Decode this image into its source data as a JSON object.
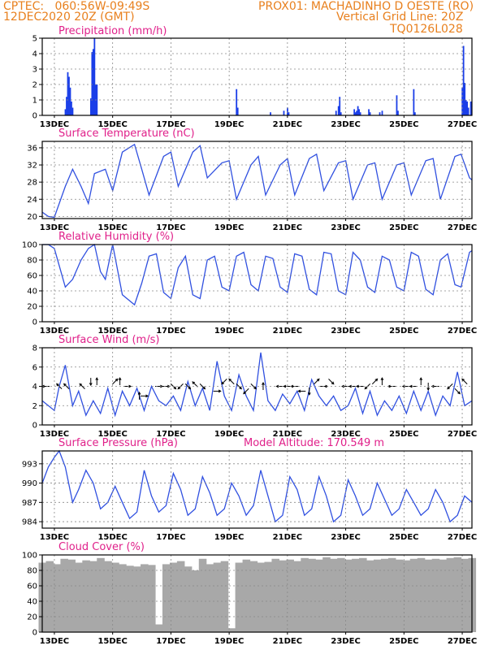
{
  "header": {
    "line1": "CPTEC:   060:56W-09:49S",
    "line2": "12DEC2020 20Z (GMT)",
    "location": "PROX01: MACHADINHO D OESTE (RO)",
    "grid_note": "Vertical Grid Line: 20Z",
    "code": "TQ0126L028"
  },
  "colors": {
    "header": "#e8801e",
    "title": "#e0208a",
    "line": "#3050e0",
    "bar": "#1a3ee8",
    "cloud": "#a8a8a8"
  },
  "x_ticks": [
    "13DEC",
    "15DEC",
    "17DEC",
    "19DEC",
    "21DEC",
    "23DEC",
    "25DEC",
    "27DEC"
  ],
  "chart_data": [
    {
      "type": "bar",
      "title": "Precipitation  (mm/h)",
      "ylim": [
        0,
        5
      ],
      "yticks": [
        0,
        1,
        2,
        3,
        4,
        5
      ],
      "x_unit": "hours since 12DEC2020 20Z",
      "x_range": [
        0,
        354
      ],
      "bars": [
        [
          19,
          0.4
        ],
        [
          20,
          1.2
        ],
        [
          21,
          2.8
        ],
        [
          22,
          2.5
        ],
        [
          23,
          1.8
        ],
        [
          24,
          0.9
        ],
        [
          25,
          0.5
        ],
        [
          40,
          1.1
        ],
        [
          41,
          4.1
        ],
        [
          42,
          4.3
        ],
        [
          43,
          5.0
        ],
        [
          44,
          2.0
        ],
        [
          45,
          2.0
        ],
        [
          160,
          1.7
        ],
        [
          161,
          0.5
        ],
        [
          188,
          0.2
        ],
        [
          199,
          0.3
        ],
        [
          202,
          0.5
        ],
        [
          203,
          0.2
        ],
        [
          242,
          0.3
        ],
        [
          244,
          0.6
        ],
        [
          245,
          1.2
        ],
        [
          246,
          0.2
        ],
        [
          257,
          0.4
        ],
        [
          258,
          0.2
        ],
        [
          259,
          0.3
        ],
        [
          260,
          0.6
        ],
        [
          261,
          0.4
        ],
        [
          262,
          0.2
        ],
        [
          269,
          0.4
        ],
        [
          270,
          0.2
        ],
        [
          278,
          0.2
        ],
        [
          280,
          0.3
        ],
        [
          292,
          1.3
        ],
        [
          293,
          0.3
        ],
        [
          306,
          1.7
        ],
        [
          307,
          0.2
        ],
        [
          346,
          1.8
        ],
        [
          347,
          4.5
        ],
        [
          348,
          2.1
        ],
        [
          349,
          1.0
        ],
        [
          350,
          0.9
        ],
        [
          351,
          0.5
        ],
        [
          353,
          0.9
        ]
      ]
    },
    {
      "type": "line",
      "title": "Surface Temperature (nC)",
      "ylim": [
        19.5,
        37.5
      ],
      "yticks": [
        20,
        24,
        28,
        32,
        36
      ],
      "x": [
        0,
        5,
        10,
        19,
        25,
        32,
        38,
        43,
        52,
        58,
        66,
        76,
        82,
        88,
        100,
        106,
        112,
        124,
        130,
        136,
        148,
        154,
        160,
        172,
        178,
        184,
        196,
        202,
        208,
        220,
        226,
        232,
        244,
        250,
        256,
        268,
        274,
        280,
        292,
        298,
        304,
        316,
        322,
        328,
        340,
        345,
        352,
        354
      ],
      "y": [
        21,
        20,
        19.8,
        27,
        31,
        27,
        23,
        30,
        31,
        26,
        35,
        36.8,
        31,
        25,
        34,
        35,
        27,
        35,
        36.5,
        29,
        32.5,
        33,
        24,
        32,
        34,
        25,
        32,
        33.5,
        25,
        33.5,
        34.5,
        26,
        32.5,
        33,
        24,
        32,
        32.5,
        24,
        32,
        32.5,
        25,
        33,
        33.5,
        24,
        34,
        34.5,
        29,
        28.5
      ]
    },
    {
      "type": "line",
      "title": "Relative Humidity  (%)",
      "ylim": [
        0,
        100
      ],
      "yticks": [
        0,
        20,
        40,
        60,
        80,
        100
      ],
      "x": [
        0,
        5,
        10,
        19,
        25,
        32,
        38,
        43,
        48,
        52,
        58,
        66,
        76,
        82,
        88,
        94,
        100,
        106,
        112,
        118,
        124,
        130,
        136,
        142,
        148,
        154,
        160,
        166,
        172,
        178,
        184,
        190,
        196,
        202,
        208,
        214,
        220,
        226,
        232,
        238,
        244,
        250,
        256,
        262,
        268,
        274,
        280,
        286,
        292,
        298,
        304,
        310,
        316,
        322,
        328,
        334,
        340,
        345,
        352,
        354
      ],
      "y": [
        100,
        100,
        95,
        45,
        55,
        80,
        95,
        100,
        65,
        55,
        100,
        35,
        22,
        50,
        85,
        88,
        38,
        30,
        70,
        85,
        35,
        30,
        80,
        85,
        45,
        40,
        85,
        90,
        48,
        40,
        85,
        82,
        45,
        38,
        88,
        85,
        42,
        35,
        90,
        88,
        40,
        35,
        90,
        80,
        45,
        38,
        85,
        80,
        45,
        40,
        90,
        85,
        42,
        35,
        80,
        88,
        48,
        45,
        90,
        92
      ]
    },
    {
      "type": "line",
      "title": "Surface Wind  (m/s)",
      "ylim": [
        0,
        8
      ],
      "yticks": [
        0,
        2,
        4,
        6,
        8
      ],
      "x": [
        0,
        5,
        10,
        14,
        19,
        25,
        30,
        36,
        42,
        48,
        54,
        60,
        66,
        72,
        78,
        84,
        90,
        96,
        102,
        108,
        114,
        120,
        126,
        132,
        138,
        144,
        150,
        156,
        162,
        168,
        174,
        180,
        186,
        192,
        198,
        204,
        210,
        216,
        222,
        228,
        234,
        240,
        246,
        252,
        258,
        264,
        270,
        276,
        282,
        288,
        294,
        300,
        306,
        312,
        318,
        324,
        330,
        336,
        342,
        348,
        354
      ],
      "y": [
        2.5,
        2,
        1.5,
        4,
        6.2,
        2,
        3.5,
        1,
        2.5,
        1.2,
        3.8,
        1,
        3.5,
        2,
        3.8,
        1.5,
        4,
        2.5,
        2,
        3,
        1.5,
        4.5,
        2,
        3.8,
        1.5,
        6.6,
        3,
        1.5,
        5.2,
        3,
        1.5,
        7.5,
        2.5,
        1.5,
        3.2,
        2.2,
        3.5,
        1.5,
        4.7,
        3,
        2,
        3,
        1.5,
        2,
        3.8,
        1.2,
        3.5,
        1,
        2.5,
        1.5,
        3,
        1.2,
        3.5,
        1.5,
        3.5,
        1,
        3,
        2,
        5.5,
        2,
        2.5
      ],
      "vectors": [
        [
          3,
          4,
          "w"
        ],
        [
          14,
          4,
          "nw"
        ],
        [
          20,
          4,
          "nw"
        ],
        [
          33,
          4,
          "nw"
        ],
        [
          40,
          4.5,
          "s"
        ],
        [
          45,
          4.5,
          "n"
        ],
        [
          60,
          4.5,
          "ne"
        ],
        [
          64,
          4.5,
          "n"
        ],
        [
          70,
          4,
          "e"
        ],
        [
          80,
          3,
          "n"
        ],
        [
          84,
          3,
          "e"
        ],
        [
          96,
          4,
          "e"
        ],
        [
          102,
          4,
          "e"
        ],
        [
          108,
          4,
          "se"
        ],
        [
          114,
          4,
          "sw"
        ],
        [
          120,
          4,
          "se"
        ],
        [
          126,
          4.2,
          "nw"
        ],
        [
          132,
          4,
          "se"
        ],
        [
          144,
          3.5,
          "e"
        ],
        [
          150,
          4.5,
          "sw"
        ],
        [
          156,
          4.5,
          "nw"
        ],
        [
          162,
          4,
          "se"
        ],
        [
          168,
          3.5,
          "sw"
        ],
        [
          174,
          4,
          "se"
        ],
        [
          182,
          4,
          "n"
        ],
        [
          196,
          4,
          "w"
        ],
        [
          202,
          4,
          "w"
        ],
        [
          208,
          4,
          "w"
        ],
        [
          214,
          3.5,
          "w"
        ],
        [
          220,
          3.5,
          "s"
        ],
        [
          226,
          4.5,
          "ne"
        ],
        [
          232,
          4,
          "e"
        ],
        [
          238,
          4.5,
          "se"
        ],
        [
          250,
          4,
          "w"
        ],
        [
          256,
          4,
          "w"
        ],
        [
          262,
          4,
          "w"
        ],
        [
          268,
          4,
          "sw"
        ],
        [
          274,
          4.5,
          "ne"
        ],
        [
          280,
          4.5,
          "n"
        ],
        [
          288,
          4,
          "w"
        ],
        [
          300,
          4,
          "w"
        ],
        [
          306,
          4,
          "w"
        ],
        [
          312,
          4.5,
          "n"
        ],
        [
          318,
          4,
          "s"
        ],
        [
          324,
          4,
          "w"
        ],
        [
          336,
          4,
          "sw"
        ],
        [
          342,
          3.5,
          "se"
        ],
        [
          348,
          4.5,
          "nw"
        ]
      ]
    },
    {
      "type": "line",
      "title": "Surface Pressure (hPa)",
      "annotation": "Model Altitude: 170.549  m",
      "ylim": [
        983,
        995
      ],
      "yticks": [
        984,
        987,
        990,
        993
      ],
      "x": [
        0,
        5,
        10,
        14,
        19,
        25,
        30,
        36,
        42,
        48,
        54,
        60,
        66,
        72,
        78,
        84,
        90,
        96,
        102,
        108,
        114,
        120,
        126,
        132,
        138,
        144,
        150,
        156,
        162,
        168,
        174,
        180,
        186,
        192,
        198,
        204,
        210,
        216,
        222,
        228,
        234,
        240,
        246,
        252,
        258,
        264,
        270,
        276,
        282,
        288,
        294,
        300,
        306,
        312,
        318,
        324,
        330,
        336,
        342,
        348,
        354
      ],
      "y": [
        990,
        992.5,
        994,
        995,
        992.5,
        987,
        989,
        992,
        990,
        986,
        987,
        989.5,
        987,
        984.5,
        985.5,
        992,
        988,
        985.5,
        986.5,
        991.5,
        989,
        985,
        986,
        991,
        988.5,
        985,
        986,
        990,
        988,
        985,
        986.5,
        992,
        988,
        984,
        985,
        991,
        989,
        985,
        986,
        991,
        988,
        984,
        985,
        990.5,
        988,
        985,
        986,
        990,
        987.5,
        985,
        986,
        989,
        987,
        985,
        986,
        989,
        987,
        984,
        985,
        988,
        987
      ]
    },
    {
      "type": "area",
      "title": "Cloud Cover (%)",
      "ylim": [
        0,
        100
      ],
      "yticks": [
        0,
        20,
        40,
        60,
        80,
        100
      ],
      "x": [
        0,
        6,
        12,
        18,
        24,
        30,
        36,
        42,
        48,
        54,
        60,
        66,
        72,
        78,
        84,
        90,
        96,
        102,
        108,
        114,
        120,
        126,
        132,
        138,
        144,
        150,
        156,
        162,
        168,
        174,
        180,
        186,
        192,
        198,
        204,
        210,
        216,
        222,
        228,
        234,
        240,
        246,
        252,
        258,
        264,
        270,
        276,
        282,
        288,
        294,
        300,
        306,
        312,
        318,
        324,
        330,
        336,
        342,
        348,
        354
      ],
      "y": [
        90,
        92,
        88,
        95,
        94,
        90,
        93,
        92,
        96,
        92,
        90,
        88,
        86,
        85,
        88,
        87,
        10,
        88,
        90,
        92,
        85,
        80,
        95,
        88,
        90,
        92,
        5,
        90,
        94,
        92,
        90,
        91,
        95,
        93,
        94,
        92,
        96,
        95,
        94,
        97,
        95,
        96,
        94,
        95,
        96,
        93,
        94,
        95,
        96,
        94,
        93,
        95,
        96,
        94,
        95,
        94,
        96,
        97,
        95,
        96
      ]
    }
  ]
}
